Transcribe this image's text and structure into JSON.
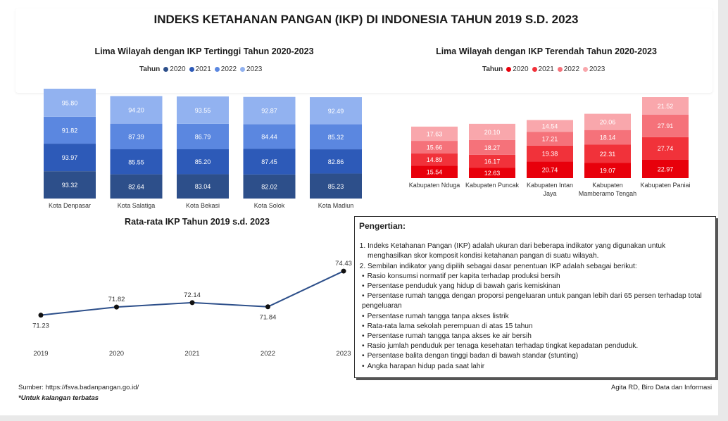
{
  "main_title": "INDEKS KETAHANAN PANGAN (IKP) DI INDONESIA TAHUN 2019 S.D. 2023",
  "source": "Sumber: https://fsva.badanpangan.go.id/",
  "restricted": "*Untuk kalangan terbatas",
  "credit": "Agita RD, Biro Data dan Informasi",
  "colors": {
    "high": [
      "#2d4f8a",
      "#2d5ab8",
      "#5b87e0",
      "#92b2f0"
    ],
    "low": [
      "#e8000b",
      "#f1323a",
      "#f5727a",
      "#f9a7ac"
    ],
    "line": "#2d4f8a"
  },
  "chart_data": [
    {
      "type": "bar",
      "stacked": true,
      "title": "Lima Wilayah dengan IKP Tertinggi Tahun 2020-2023",
      "legend_title": "Tahun",
      "categories": [
        "Kota Denpasar",
        "Kota Salatiga",
        "Kota Bekasi",
        "Kota Solok",
        "Kota Madiun"
      ],
      "series": [
        {
          "name": "2020",
          "values": [
            93.32,
            82.64,
            83.04,
            82.02,
            85.23
          ]
        },
        {
          "name": "2021",
          "values": [
            93.97,
            85.55,
            85.2,
            87.45,
            82.86
          ]
        },
        {
          "name": "2022",
          "values": [
            91.82,
            87.39,
            86.79,
            84.44,
            85.32
          ]
        },
        {
          "name": "2023",
          "values": [
            95.8,
            94.2,
            93.55,
            92.87,
            92.49
          ]
        }
      ]
    },
    {
      "type": "bar",
      "stacked": true,
      "title": "Lima Wilayah dengan IKP Terendah Tahun 2020-2023",
      "legend_title": "Tahun",
      "categories": [
        "Kabupaten Nduga",
        "Kabupaten Puncak",
        "Kabupaten Intan Jaya",
        "Kabupaten Mamberamo Tengah",
        "Kabupaten Paniai"
      ],
      "series": [
        {
          "name": "2020",
          "values": [
            15.54,
            12.63,
            20.74,
            19.07,
            22.97
          ]
        },
        {
          "name": "2021",
          "values": [
            14.89,
            16.17,
            19.38,
            22.31,
            27.74
          ]
        },
        {
          "name": "2022",
          "values": [
            15.66,
            18.27,
            17.21,
            18.14,
            27.91
          ]
        },
        {
          "name": "2023",
          "values": [
            17.63,
            20.1,
            14.54,
            20.06,
            21.52
          ]
        }
      ]
    },
    {
      "type": "line",
      "title": "Rata-rata IKP Tahun 2019 s.d. 2023",
      "x": [
        "2019",
        "2020",
        "2021",
        "2022",
        "2023"
      ],
      "values": [
        71.23,
        71.82,
        72.14,
        71.84,
        74.43
      ]
    }
  ],
  "definition": {
    "title": "Pengertian:",
    "items": [
      "Indeks Ketahanan Pangan (IKP) adalah ukuran dari beberapa indikator yang digunakan untuk menghasilkan skor komposit kondisi ketahanan pangan di suatu wilayah.",
      "Sembilan indikator yang dipilih sebagai dasar penentuan IKP adalah sebagai berikut:"
    ],
    "indicators": [
      "Rasio konsumsi normatif per kapita terhadap produksi bersih",
      "Persentase penduduk yang hidup di bawah garis kemiskinan",
      "Persentase rumah tangga dengan proporsi pengeluaran untuk pangan lebih dari 65 persen terhadap total pengeluaran",
      "Persentase rumah tangga tanpa akses listrik",
      "Rata-rata lama sekolah perempuan di atas 15 tahun",
      "Persentase rumah tangga tanpa akses ke air bersih",
      "Rasio jumlah penduduk per tenaga kesehatan terhadap tingkat kepadatan penduduk.",
      "Persentase balita dengan tinggi badan di bawah standar (stunting)",
      "Angka harapan hidup pada saat lahir"
    ]
  }
}
